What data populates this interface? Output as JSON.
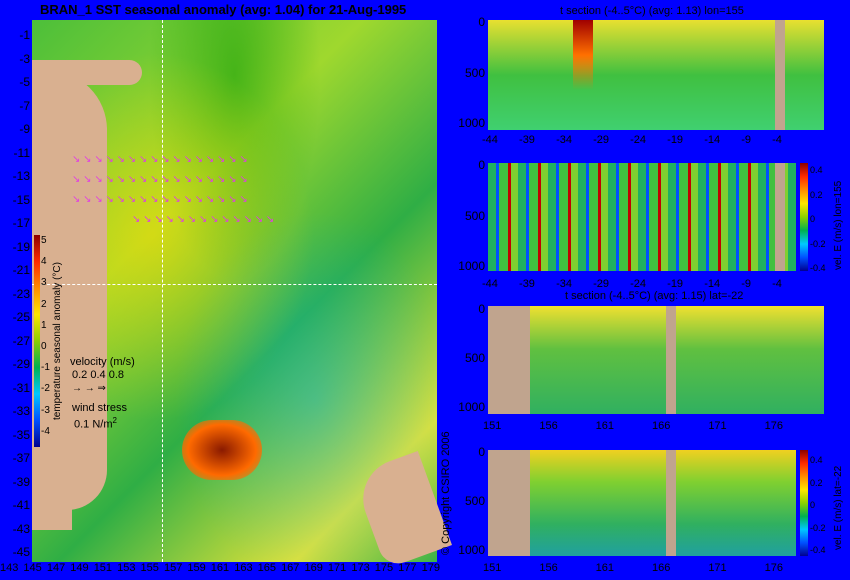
{
  "main_map": {
    "title": "BRAN_1  SST seasonal anomaly (avg: 1.04) for 21-Aug-1995",
    "y_ticks": [
      "-1",
      "-3",
      "-5",
      "-7",
      "-9",
      "-11",
      "-13",
      "-15",
      "-17",
      "-19",
      "-21",
      "-23",
      "-25",
      "-27",
      "-29",
      "-31",
      "-33",
      "-35",
      "-37",
      "-39",
      "-41",
      "-43",
      "-45"
    ],
    "x_ticks": [
      "143",
      "145",
      "147",
      "149",
      "151",
      "153",
      "155",
      "157",
      "159",
      "161",
      "163",
      "165",
      "167",
      "169",
      "171",
      "173",
      "175",
      "177",
      "179"
    ],
    "colorbar_ticks": [
      "5",
      "4",
      "3",
      "2",
      "1",
      "0",
      "-1",
      "-2",
      "-3",
      "-4"
    ],
    "colorbar_label": "temperature seasonal anomaly (°C)",
    "velocity_legend": "velocity (m/s)",
    "velocity_values": "0.2 0.4 0.8",
    "wind_legend": "wind stress",
    "wind_value": "0.1 N/m",
    "wind_exp": "2"
  },
  "section1": {
    "title": "t section (-4..5°C) (avg: 1.13) lon=155",
    "y_ticks": [
      "0",
      "500",
      "1000"
    ],
    "x_ticks": [
      "-44",
      "-39",
      "-34",
      "-29",
      "-24",
      "-19",
      "-14",
      "-9",
      "-4"
    ]
  },
  "section2": {
    "y_ticks": [
      "0",
      "500",
      "1000"
    ],
    "x_ticks": [
      "-44",
      "-39",
      "-34",
      "-29",
      "-24",
      "-19",
      "-14",
      "-9",
      "-4"
    ],
    "colorbar_ticks": [
      "0.4",
      "0.2",
      "0",
      "-0.2",
      "-0.4"
    ],
    "colorbar_label": "vel. E (m/s) lon=155"
  },
  "section3": {
    "title": "t section (-4..5°C) (avg: 1.15) lat=-22",
    "y_ticks": [
      "0",
      "500",
      "1000"
    ],
    "x_ticks": [
      "151",
      "156",
      "161",
      "166",
      "171",
      "176"
    ]
  },
  "section4": {
    "y_ticks": [
      "0",
      "500",
      "1000"
    ],
    "x_ticks": [
      "151",
      "156",
      "161",
      "166",
      "171",
      "176"
    ],
    "colorbar_ticks": [
      "0.4",
      "0.2",
      "0",
      "-0.2",
      "-0.4"
    ],
    "colorbar_label": "vel. E (m/s) lat=-22"
  },
  "copyright": "© Copyright CSIRO 2006"
}
